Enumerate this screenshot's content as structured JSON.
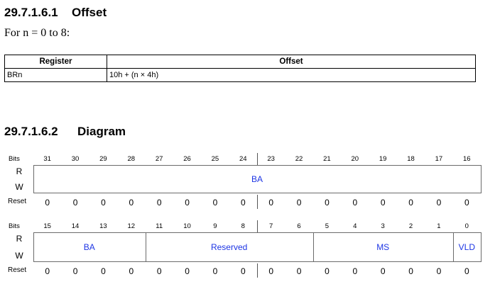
{
  "section1": {
    "number": "29.7.1.6.1",
    "title": "Offset"
  },
  "intro": "For n = 0 to 8:",
  "offset_table": {
    "headers": [
      "Register",
      "Offset"
    ],
    "rows": [
      {
        "register": "BRn",
        "offset": "10h + (n × 4h)"
      }
    ]
  },
  "section2": {
    "number": "29.7.1.6.2",
    "title": "Diagram"
  },
  "diagram": {
    "labels": {
      "bits": "Bits",
      "read": "R",
      "write": "W",
      "reset": "Reset"
    },
    "upper": {
      "bits": [
        "31",
        "30",
        "29",
        "28",
        "27",
        "26",
        "25",
        "24",
        "23",
        "22",
        "21",
        "20",
        "19",
        "18",
        "17",
        "16"
      ],
      "fields": [
        {
          "name": "BA",
          "from": 0,
          "to": 15
        }
      ],
      "reset": [
        "0",
        "0",
        "0",
        "0",
        "0",
        "0",
        "0",
        "0",
        "0",
        "0",
        "0",
        "0",
        "0",
        "0",
        "0",
        "0"
      ]
    },
    "lower": {
      "bits": [
        "15",
        "14",
        "13",
        "12",
        "11",
        "10",
        "9",
        "8",
        "7",
        "6",
        "5",
        "4",
        "3",
        "2",
        "1",
        "0"
      ],
      "fields": [
        {
          "name": "BA",
          "from": 0,
          "to": 3
        },
        {
          "name": "Reserved",
          "from": 4,
          "to": 9
        },
        {
          "name": "MS",
          "from": 10,
          "to": 14
        },
        {
          "name": "VLD",
          "from": 15,
          "to": 15
        }
      ],
      "reset": [
        "0",
        "0",
        "0",
        "0",
        "0",
        "0",
        "0",
        "0",
        "0",
        "0",
        "0",
        "0",
        "0",
        "0",
        "0",
        "0"
      ]
    }
  }
}
